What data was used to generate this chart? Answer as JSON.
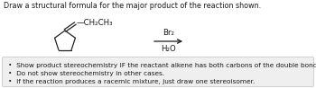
{
  "title": "Draw a structural formula for the major product of the reaction shown.",
  "reagent_line1": "Br₂",
  "reagent_line2": "H₂O",
  "substituent": "—CH₂CH₃",
  "bullet1": "Show product stereochemistry IF the reactant alkene has both carbons of the double bond within a ring.",
  "bullet2": "Do not show stereochemistry in other cases.",
  "bullet3": "If the reaction produces a racemic mixture, just draw one stereoisomer.",
  "text_color": "#1a1a1a",
  "ring_color": "#222222",
  "title_fontsize": 5.8,
  "mol_fontsize": 6.2,
  "bullet_fontsize": 5.3,
  "fig_width": 3.5,
  "fig_height": 0.98
}
